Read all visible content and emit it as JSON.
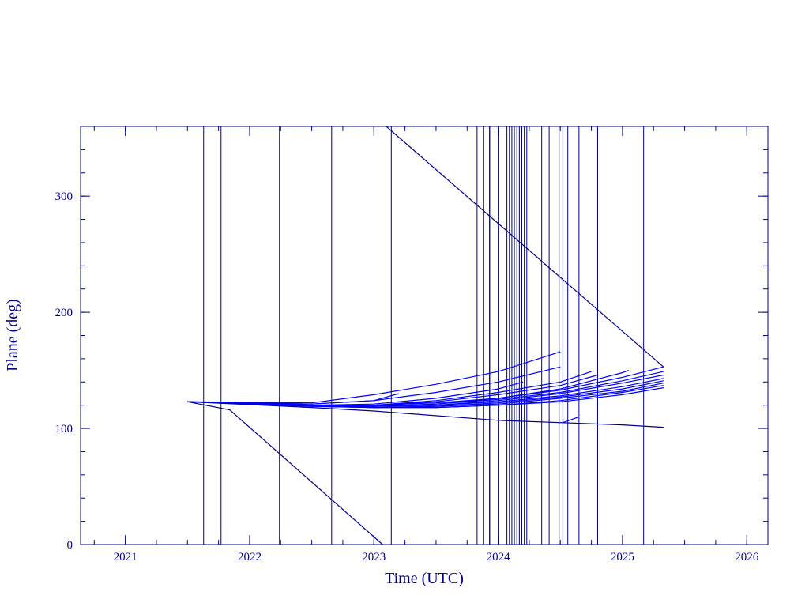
{
  "chart_data": {
    "type": "line",
    "x_label": "Time (UTC)",
    "y_label": "Plane (deg)",
    "xlim": [
      2020.64,
      2026.17
    ],
    "ylim": [
      0,
      360
    ],
    "xticks": [
      2021,
      2022,
      2023,
      2024,
      2025,
      2026
    ],
    "yticks": [
      0,
      100,
      200,
      300
    ],
    "x_minor_step": 0.25,
    "y_minor_step": 20,
    "axis_color": "#00008b",
    "vline_color": "#00008b",
    "vlines": [
      2021.63,
      2021.77,
      2022.24,
      2022.66,
      2023.14,
      2023.83,
      2023.88,
      2023.93,
      2023.94,
      2024.0,
      2024.07,
      2024.09,
      2024.11,
      2024.13,
      2024.15,
      2024.17,
      2024.19,
      2024.21,
      2024.23,
      2024.35,
      2024.41,
      2024.49,
      2024.52,
      2024.56,
      2024.65,
      2024.8,
      2025.17
    ],
    "series": [
      {
        "color": "#0000ff",
        "x": [
          2021.5,
          2022.5,
          2023.0,
          2023.5,
          2024.0,
          2024.5,
          2025.0,
          2025.33
        ],
        "values": [
          123,
          120,
          120,
          122,
          126,
          133,
          144,
          153
        ]
      },
      {
        "color": "#0000ff",
        "x": [
          2021.5,
          2022.5,
          2023.0,
          2023.5,
          2024.0,
          2024.5,
          2025.0,
          2025.33
        ],
        "values": [
          123,
          120,
          119,
          121,
          125,
          131,
          141,
          149
        ]
      },
      {
        "color": "#0000ff",
        "x": [
          2021.5,
          2022.5,
          2023.0,
          2023.5,
          2024.0,
          2024.5,
          2025.0,
          2025.33
        ],
        "values": [
          123,
          120,
          119,
          120,
          124,
          130,
          139,
          146
        ]
      },
      {
        "color": "#0000ff",
        "x": [
          2021.5,
          2022.5,
          2023.0,
          2023.5,
          2024.0,
          2024.5,
          2025.0,
          2025.33
        ],
        "values": [
          123,
          120,
          119,
          120,
          123,
          128,
          136,
          143
        ]
      },
      {
        "color": "#0000ff",
        "x": [
          2021.5,
          2022.5,
          2023.0,
          2023.5,
          2024.0,
          2024.5,
          2025.0,
          2025.33
        ],
        "values": [
          123,
          120,
          118,
          119,
          122,
          127,
          134,
          141
        ]
      },
      {
        "color": "#0000ff",
        "x": [
          2021.5,
          2022.5,
          2023.0,
          2023.5,
          2024.0,
          2024.5,
          2025.0,
          2025.33
        ],
        "values": [
          123,
          119,
          118,
          119,
          121,
          126,
          132,
          139
        ]
      },
      {
        "color": "#0000ff",
        "x": [
          2021.5,
          2022.5,
          2023.0,
          2023.5,
          2024.0,
          2024.5,
          2025.0,
          2025.33
        ],
        "values": [
          123,
          119,
          118,
          118,
          120,
          124,
          131,
          137
        ]
      },
      {
        "color": "#0000ff",
        "x": [
          2021.5,
          2022.5,
          2023.0,
          2023.5,
          2024.0,
          2024.5,
          2025.0,
          2025.33
        ],
        "values": [
          123,
          119,
          118,
          118,
          120,
          123,
          129,
          135
        ]
      },
      {
        "color": "#0000ff",
        "x": [
          2021.5,
          2022.5,
          2023.0,
          2023.5,
          2024.0,
          2024.5,
          2025.0,
          2025.05
        ],
        "values": [
          123,
          120,
          119,
          121,
          126,
          134,
          148,
          150
        ]
      },
      {
        "color": "#0000ff",
        "x": [
          2021.5,
          2022.5,
          2023.0,
          2023.5,
          2024.0,
          2024.5,
          2024.8
        ],
        "values": [
          123,
          120,
          120,
          123,
          129,
          137,
          146
        ]
      },
      {
        "color": "#0000ff",
        "x": [
          2021.5,
          2022.5,
          2023.0,
          2023.5,
          2024.0,
          2024.5,
          2024.75
        ],
        "values": [
          123,
          120,
          120,
          124,
          131,
          140,
          149
        ]
      },
      {
        "color": "#0000ff",
        "x": [
          2021.5,
          2022.5,
          2023.0,
          2023.5,
          2024.0,
          2024.5
        ],
        "values": [
          123,
          121,
          124,
          131,
          140,
          153
        ]
      },
      {
        "color": "#0000ff",
        "x": [
          2021.5,
          2022.5,
          2023.0,
          2023.5,
          2024.0,
          2024.5
        ],
        "values": [
          123,
          122,
          129,
          138,
          149,
          166
        ]
      },
      {
        "color": "#0000ff",
        "x": [
          2021.5,
          2022.5,
          2023.0,
          2023.2
        ],
        "values": [
          123,
          121,
          124,
          130
        ]
      },
      {
        "color": "#0000ff",
        "x": [
          2021.5,
          2022.5,
          2023.0,
          2023.5,
          2024.0,
          2024.2
        ],
        "values": [
          123,
          120,
          121,
          126,
          134,
          140
        ]
      },
      {
        "color": "#0000ff",
        "x": [
          2024.52,
          2024.65
        ],
        "values": [
          105,
          110
        ]
      },
      {
        "color": "#00008b",
        "x": [
          2021.5,
          2021.84,
          2023.07
        ],
        "values": [
          123,
          116,
          0
        ]
      },
      {
        "color": "#00008b",
        "x": [
          2023.1,
          2025.33
        ],
        "values": [
          360,
          153
        ]
      },
      {
        "color": "#00008b",
        "x": [
          2021.5,
          2022.5,
          2023.0,
          2024.0,
          2025.0,
          2025.33
        ],
        "values": [
          123,
          118,
          115,
          107,
          103,
          101
        ]
      }
    ]
  }
}
